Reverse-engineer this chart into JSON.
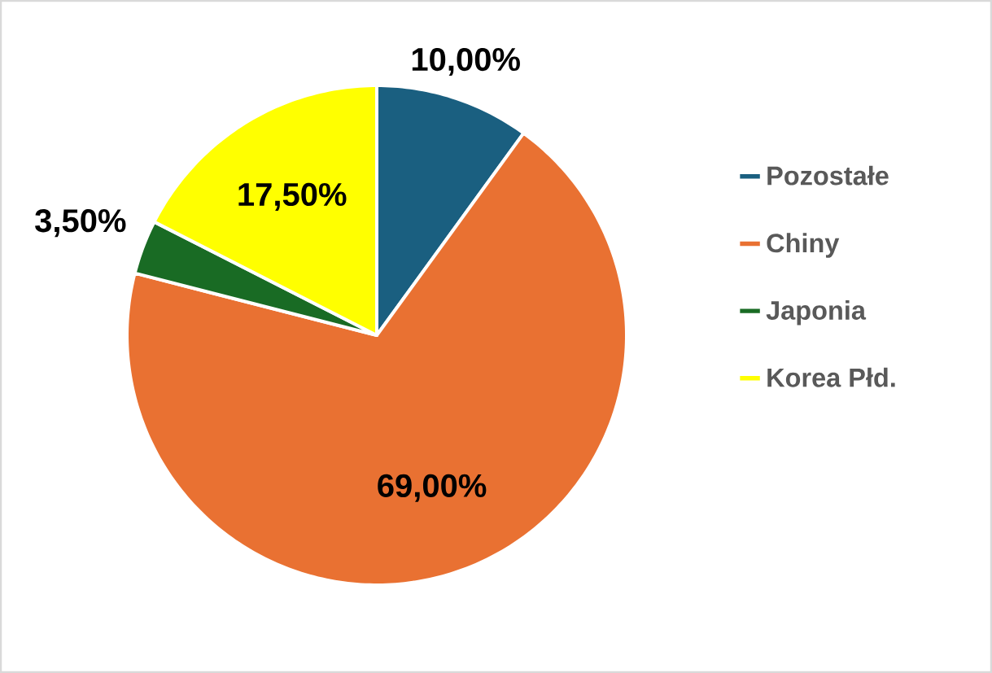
{
  "chart_data": {
    "type": "pie",
    "categories": [
      "Pozostałe",
      "Chiny",
      "Japonia",
      "Korea Płd."
    ],
    "values": [
      10,
      69,
      3.5,
      17.5
    ],
    "colors": [
      "#1a5f80",
      "#e97132",
      "#196b24",
      "#ffff00"
    ],
    "value_labels": [
      "10,00%",
      "69,00%",
      "3,50%",
      "17,50%"
    ],
    "legend": "right"
  }
}
